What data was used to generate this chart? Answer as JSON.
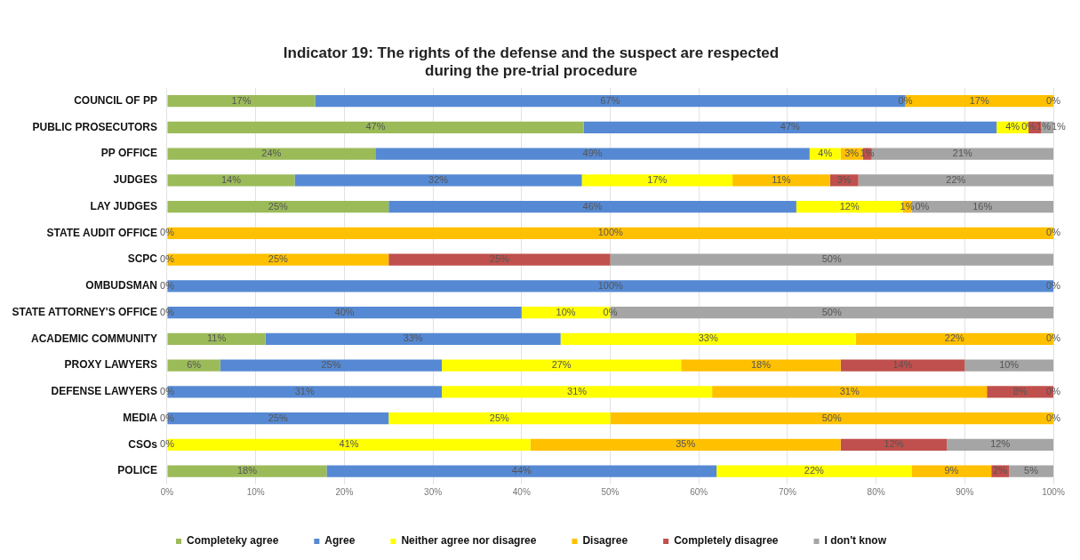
{
  "chart_data": {
    "type": "bar",
    "orientation": "horizontal",
    "stacked": true,
    "title": "Indicator 19: The rights of the defense and the suspect are respected\nduring the pre-trial procedure",
    "categories": [
      "COUNCIL OF PP",
      "PUBLIC PROSECUTORS",
      "PP OFFICE",
      "JUDGES",
      "LAY JUDGES",
      "STATE AUDIT OFFICE",
      "SCPC",
      "OMBUDSMAN",
      "STATE ATTORNEY'S OFFICE",
      "ACADEMIC COMMUNITY",
      "PROXY LAWYERS",
      "DEFENSE LAWYERS",
      "MEDIA",
      "CSOs",
      "POLICE"
    ],
    "series": [
      {
        "name": "Completeky agree",
        "color": "#9bbb59",
        "values": [
          16.7,
          47,
          23.5,
          14.4,
          25,
          0,
          0,
          0,
          0,
          11.1,
          6,
          0,
          0,
          0,
          18
        ],
        "value_labels": [
          "17%",
          "47%",
          "24%",
          "14%",
          "25%",
          null,
          null,
          null,
          null,
          "11%",
          "6%",
          null,
          null,
          null,
          "18%"
        ]
      },
      {
        "name": "Agree",
        "color": "#5689d3",
        "values": [
          66.6,
          46.6,
          49,
          32.4,
          46,
          0,
          0,
          100,
          40,
          33.3,
          25,
          31,
          25,
          0,
          44
        ],
        "value_labels": [
          "67%",
          "47%",
          "49%",
          "32%",
          "46%",
          null,
          null,
          "100%",
          "40%",
          "33%",
          "25%",
          "31%",
          "25%",
          null,
          "44%"
        ]
      },
      {
        "name": "Neither agree nor disagree",
        "color": "#ffff00",
        "values": [
          0,
          3.6,
          3.5,
          17,
          12,
          0,
          0,
          0,
          10,
          33.3,
          27,
          30.5,
          25,
          41,
          22
        ],
        "value_labels": [
          null,
          "4%",
          "4%",
          "17%",
          "12%",
          null,
          null,
          null,
          "10%",
          "33%",
          "27%",
          "31%",
          "25%",
          "41%",
          "22%"
        ]
      },
      {
        "name": "Disagree",
        "color": "#ffc000",
        "values": [
          16.7,
          0,
          2.5,
          11,
          1,
          100,
          25,
          0,
          0,
          22.3,
          18,
          31,
          50,
          35,
          9
        ],
        "value_labels": [
          "17%",
          null,
          "3%",
          "11%",
          "1%",
          "100%",
          "25%",
          null,
          null,
          "22%",
          "18%",
          "31%",
          "50%",
          "35%",
          "9%"
        ]
      },
      {
        "name": "Completely disagree",
        "color": "#c0504d",
        "values": [
          0,
          1.4,
          1,
          3.2,
          0,
          0,
          25,
          0,
          0,
          0,
          14,
          7.5,
          0,
          12,
          2
        ],
        "value_labels": [
          null,
          "1%",
          "1%",
          "3%",
          null,
          null,
          "25%",
          null,
          null,
          null,
          "14%",
          "8%",
          null,
          "12%",
          "2%"
        ]
      },
      {
        "name": "I don't know",
        "color": "#a5a5a5",
        "values": [
          0,
          1.4,
          20.5,
          22,
          16,
          0,
          50,
          0,
          50,
          0,
          10,
          0,
          0,
          12,
          5
        ],
        "value_labels": [
          null,
          "1%",
          "21%",
          "22%",
          "16%",
          null,
          "50%",
          null,
          "50%",
          null,
          "10%",
          null,
          null,
          "12%",
          "5%"
        ]
      }
    ],
    "annotations": [
      {
        "text": "0%",
        "x": 83.3,
        "y": "COUNCIL OF PP"
      },
      {
        "text": "0%",
        "x": 100,
        "y": "COUNCIL OF PP"
      },
      {
        "text": "0%",
        "x": 97.2,
        "y": "PUBLIC PROSECUTORS"
      },
      {
        "text": "0%",
        "x": 84,
        "y": "LAY JUDGES"
      },
      {
        "text": "0%",
        "x": 0,
        "y": "STATE AUDIT OFFICE"
      },
      {
        "text": "0%",
        "x": 100,
        "y": "STATE AUDIT OFFICE"
      },
      {
        "text": "0%",
        "x": 0,
        "y": "SCPC"
      },
      {
        "text": "0%",
        "x": 0,
        "y": "OMBUDSMAN"
      },
      {
        "text": "0%",
        "x": 100,
        "y": "OMBUDSMAN"
      },
      {
        "text": "0%",
        "x": 0,
        "y": "STATE ATTORNEY'S OFFICE"
      },
      {
        "text": "0%",
        "x": 50,
        "y": "STATE ATTORNEY'S OFFICE"
      },
      {
        "text": "0%",
        "x": 100,
        "y": "ACADEMIC COMMUNITY"
      },
      {
        "text": "0%",
        "x": 0,
        "y": "DEFENSE LAWYERS"
      },
      {
        "text": "0%",
        "x": 100,
        "y": "DEFENSE LAWYERS"
      },
      {
        "text": "0%",
        "x": 0,
        "y": "MEDIA"
      },
      {
        "text": "0%",
        "x": 100,
        "y": "MEDIA"
      },
      {
        "text": "0%",
        "x": 0,
        "y": "CSOs"
      }
    ],
    "xlim": [
      0,
      100
    ],
    "xticks": [
      {
        "value": 0,
        "label": "0%"
      },
      {
        "value": 10,
        "label": "10%"
      },
      {
        "value": 20,
        "label": "20%"
      },
      {
        "value": 30,
        "label": "30%"
      },
      {
        "value": 40,
        "label": "40%"
      },
      {
        "value": 50,
        "label": "50%"
      },
      {
        "value": 60,
        "label": "60%"
      },
      {
        "value": 70,
        "label": "70%"
      },
      {
        "value": 80,
        "label": "80%"
      },
      {
        "value": 90,
        "label": "90%"
      },
      {
        "value": 100,
        "label": "100%"
      }
    ],
    "grid": "x",
    "legend": "bottom"
  }
}
